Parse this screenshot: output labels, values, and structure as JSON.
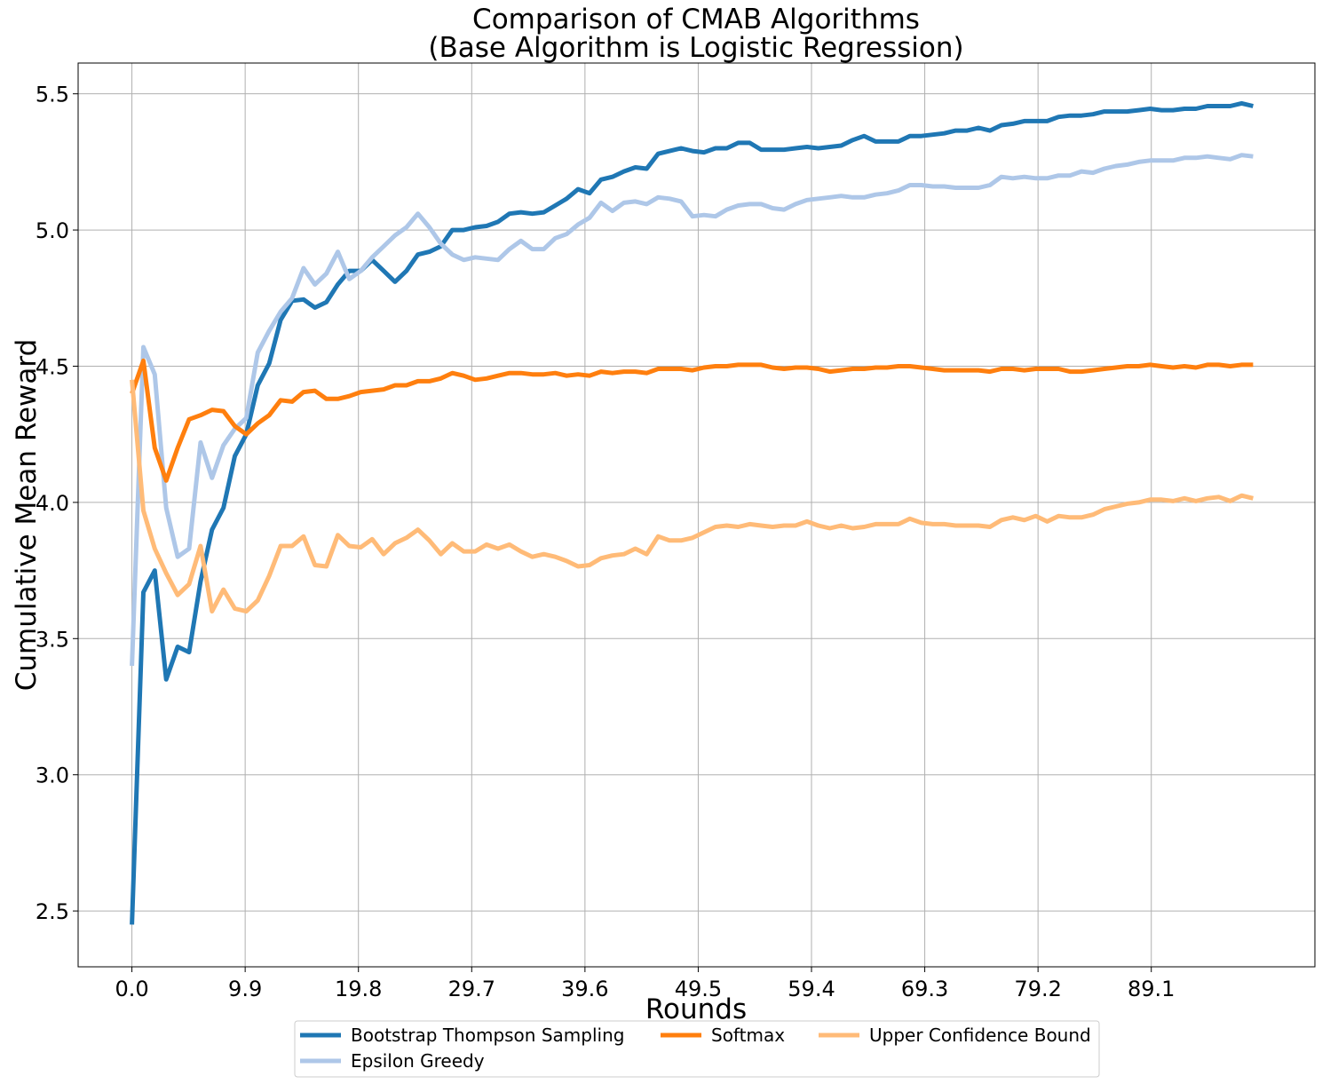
{
  "chart_data": {
    "type": "line",
    "title_lines": [
      "Comparison of CMAB Algorithms",
      "(Base Algorithm is Logistic Regression)"
    ],
    "xlabel": "Rounds",
    "ylabel": "Cumulative Mean Reward",
    "xlim": [
      -4.7,
      103.4
    ],
    "ylim": [
      2.295,
      5.613
    ],
    "x_ticks": [
      0.0,
      9.9,
      19.8,
      29.7,
      39.6,
      49.5,
      59.4,
      69.3,
      79.2,
      89.1
    ],
    "x_tick_labels": [
      "0.0",
      "9.9",
      "19.8",
      "29.7",
      "39.6",
      "49.5",
      "59.4",
      "69.3",
      "79.2",
      "89.1"
    ],
    "y_ticks": [
      2.5,
      3.0,
      3.5,
      4.0,
      4.5,
      5.0,
      5.5
    ],
    "y_tick_labels": [
      "2.5",
      "3.0",
      "3.5",
      "4.0",
      "4.5",
      "5.0",
      "5.5"
    ],
    "grid": true,
    "legend_position": "bottom-center",
    "x": [
      0,
      1,
      2,
      3,
      4,
      5,
      6,
      7,
      8,
      9,
      10,
      11,
      12,
      13,
      14,
      15,
      16,
      17,
      18,
      19,
      20,
      21,
      22,
      23,
      24,
      25,
      26,
      27,
      28,
      29,
      30,
      31,
      32,
      33,
      34,
      35,
      36,
      37,
      38,
      39,
      40,
      41,
      42,
      43,
      44,
      45,
      46,
      47,
      48,
      49,
      50,
      51,
      52,
      53,
      54,
      55,
      56,
      57,
      58,
      59,
      60,
      61,
      62,
      63,
      64,
      65,
      66,
      67,
      68,
      69,
      70,
      71,
      72,
      73,
      74,
      75,
      76,
      77,
      78,
      79,
      80,
      81,
      82,
      83,
      84,
      85,
      86,
      87,
      88,
      89,
      90,
      91,
      92,
      93,
      94,
      95,
      96,
      97,
      98
    ],
    "series": [
      {
        "name": "Bootstrap Thompson Sampling",
        "color": "#1f77b4",
        "values": [
          2.45,
          3.67,
          3.75,
          3.35,
          3.47,
          3.45,
          3.71,
          3.9,
          3.98,
          4.17,
          4.25,
          4.43,
          4.51,
          4.67,
          4.74,
          4.745,
          4.715,
          4.735,
          4.8,
          4.85,
          4.85,
          4.89,
          4.85,
          4.81,
          4.85,
          4.91,
          4.92,
          4.94,
          5.0,
          5.0,
          5.01,
          5.015,
          5.03,
          5.06,
          5.065,
          5.06,
          5.065,
          5.09,
          5.115,
          5.15,
          5.135,
          5.185,
          5.195,
          5.215,
          5.23,
          5.225,
          5.28,
          5.29,
          5.3,
          5.29,
          5.285,
          5.3,
          5.3,
          5.32,
          5.32,
          5.295,
          5.295,
          5.295,
          5.3,
          5.305,
          5.3,
          5.305,
          5.31,
          5.33,
          5.345,
          5.325,
          5.325,
          5.325,
          5.345,
          5.345,
          5.35,
          5.355,
          5.365,
          5.365,
          5.375,
          5.365,
          5.385,
          5.39,
          5.4,
          5.4,
          5.4,
          5.415,
          5.42,
          5.42,
          5.425,
          5.435,
          5.435,
          5.435,
          5.44,
          5.445,
          5.44,
          5.44,
          5.445,
          5.445,
          5.455,
          5.455,
          5.455,
          5.465,
          5.455
        ]
      },
      {
        "name": "Epsilon Greedy",
        "color": "#aec7e8",
        "values": [
          3.4,
          4.57,
          4.47,
          3.98,
          3.8,
          3.83,
          4.22,
          4.09,
          4.21,
          4.27,
          4.31,
          4.55,
          4.63,
          4.7,
          4.75,
          4.86,
          4.8,
          4.84,
          4.92,
          4.82,
          4.85,
          4.9,
          4.94,
          4.98,
          5.01,
          5.06,
          5.01,
          4.95,
          4.91,
          4.89,
          4.9,
          4.895,
          4.89,
          4.93,
          4.96,
          4.93,
          4.93,
          4.97,
          4.985,
          5.02,
          5.045,
          5.1,
          5.07,
          5.1,
          5.105,
          5.095,
          5.12,
          5.115,
          5.105,
          5.05,
          5.055,
          5.05,
          5.075,
          5.09,
          5.095,
          5.095,
          5.08,
          5.075,
          5.095,
          5.11,
          5.115,
          5.12,
          5.125,
          5.12,
          5.12,
          5.13,
          5.135,
          5.145,
          5.165,
          5.165,
          5.16,
          5.16,
          5.155,
          5.155,
          5.155,
          5.165,
          5.195,
          5.19,
          5.195,
          5.19,
          5.19,
          5.2,
          5.2,
          5.215,
          5.21,
          5.225,
          5.235,
          5.24,
          5.25,
          5.255,
          5.255,
          5.255,
          5.265,
          5.265,
          5.27,
          5.265,
          5.26,
          5.275,
          5.27
        ]
      },
      {
        "name": "Softmax",
        "color": "#ff7f0e",
        "values": [
          4.4,
          4.52,
          4.2,
          4.08,
          4.2,
          4.305,
          4.32,
          4.34,
          4.335,
          4.28,
          4.25,
          4.29,
          4.32,
          4.375,
          4.37,
          4.405,
          4.41,
          4.38,
          4.38,
          4.39,
          4.405,
          4.41,
          4.415,
          4.43,
          4.43,
          4.445,
          4.445,
          4.455,
          4.475,
          4.465,
          4.45,
          4.455,
          4.465,
          4.475,
          4.475,
          4.47,
          4.47,
          4.475,
          4.465,
          4.47,
          4.465,
          4.48,
          4.475,
          4.48,
          4.48,
          4.475,
          4.49,
          4.49,
          4.49,
          4.485,
          4.495,
          4.5,
          4.5,
          4.505,
          4.505,
          4.505,
          4.495,
          4.49,
          4.495,
          4.495,
          4.49,
          4.48,
          4.485,
          4.49,
          4.49,
          4.495,
          4.495,
          4.5,
          4.5,
          4.495,
          4.49,
          4.485,
          4.485,
          4.485,
          4.485,
          4.48,
          4.49,
          4.49,
          4.485,
          4.49,
          4.49,
          4.49,
          4.48,
          4.48,
          4.485,
          4.49,
          4.495,
          4.5,
          4.5,
          4.505,
          4.5,
          4.495,
          4.5,
          4.495,
          4.505,
          4.505,
          4.5,
          4.505,
          4.505
        ]
      },
      {
        "name": "Upper Confidence Bound",
        "color": "#ffbb78",
        "values": [
          4.45,
          3.97,
          3.83,
          3.74,
          3.66,
          3.7,
          3.84,
          3.6,
          3.68,
          3.61,
          3.6,
          3.64,
          3.73,
          3.84,
          3.84,
          3.875,
          3.77,
          3.765,
          3.88,
          3.84,
          3.835,
          3.865,
          3.81,
          3.85,
          3.87,
          3.9,
          3.86,
          3.81,
          3.85,
          3.82,
          3.82,
          3.845,
          3.83,
          3.845,
          3.82,
          3.8,
          3.81,
          3.8,
          3.785,
          3.765,
          3.77,
          3.795,
          3.805,
          3.81,
          3.83,
          3.81,
          3.875,
          3.86,
          3.86,
          3.87,
          3.89,
          3.91,
          3.915,
          3.91,
          3.92,
          3.915,
          3.91,
          3.915,
          3.915,
          3.93,
          3.915,
          3.905,
          3.915,
          3.905,
          3.91,
          3.92,
          3.92,
          3.92,
          3.94,
          3.925,
          3.92,
          3.92,
          3.915,
          3.915,
          3.915,
          3.91,
          3.935,
          3.945,
          3.935,
          3.95,
          3.93,
          3.95,
          3.945,
          3.945,
          3.955,
          3.975,
          3.985,
          3.995,
          4.0,
          4.01,
          4.01,
          4.005,
          4.015,
          4.005,
          4.015,
          4.02,
          4.005,
          4.025,
          4.015
        ]
      }
    ],
    "legend": {
      "entries": [
        {
          "label": "Bootstrap Thompson Sampling",
          "color": "#1f77b4"
        },
        {
          "label": "Softmax",
          "color": "#ff7f0e"
        },
        {
          "label": "Upper Confidence Bound",
          "color": "#ffbb78"
        },
        {
          "label": "Epsilon Greedy",
          "color": "#aec7e8"
        }
      ]
    }
  }
}
